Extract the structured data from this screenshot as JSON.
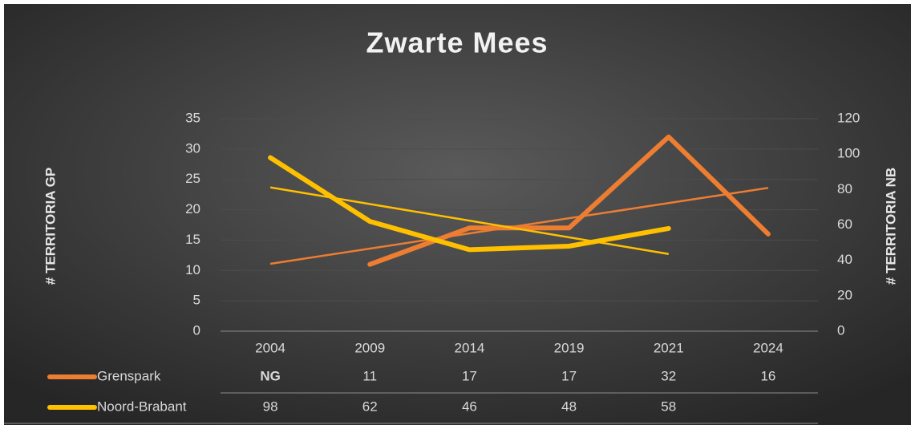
{
  "chart_data": {
    "type": "line",
    "title": "Zwarte Mees",
    "categories": [
      "2004",
      "2009",
      "2014",
      "2019",
      "2021",
      "2024"
    ],
    "ylabel": "# TERRITORIA GP",
    "y2label": "# TERRITORIA NB",
    "ylim": [
      0,
      35
    ],
    "yticks": [
      0,
      5,
      10,
      15,
      20,
      25,
      30,
      35
    ],
    "y2lim": [
      0,
      120
    ],
    "y2ticks": [
      0,
      20,
      40,
      60,
      80,
      100,
      120
    ],
    "grid": true,
    "trendline": "linear",
    "data_table": true,
    "series": [
      {
        "name": "Grenspark",
        "color": "#ed7d31",
        "values": [
          null,
          11,
          17,
          17,
          32,
          16
        ],
        "value_labels": [
          "NG",
          null,
          null,
          null,
          null,
          null
        ]
      },
      {
        "name": "Noord-Brabant",
        "color": "#ffc000",
        "axis": "y2",
        "values": [
          98,
          62,
          46,
          48,
          58,
          null
        ]
      }
    ]
  }
}
